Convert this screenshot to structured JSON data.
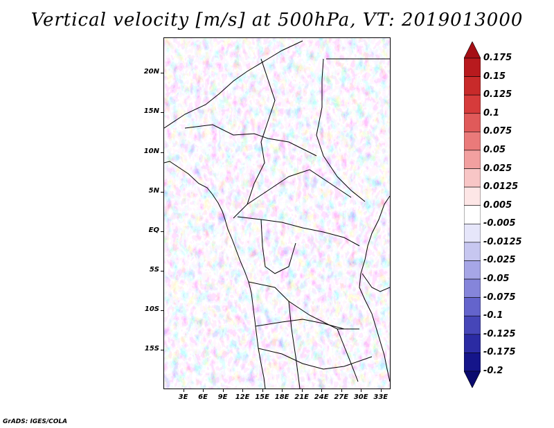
{
  "title": "Vertical velocity [m/s] at 500hPa, VT: 2019013000",
  "footer": "GrADS: IGES/COLA",
  "map": {
    "lat_labels": [
      "20N",
      "15N",
      "10N",
      "5N",
      "EQ",
      "5S",
      "10S",
      "15S"
    ],
    "lon_labels": [
      "3E",
      "6E",
      "9E",
      "12E",
      "15E",
      "18E",
      "21E",
      "24E",
      "27E",
      "30E",
      "33E"
    ],
    "lat_values": [
      20,
      15,
      10,
      5,
      0,
      -5,
      -10,
      -15
    ],
    "lon_values": [
      3,
      6,
      9,
      12,
      15,
      18,
      21,
      24,
      27,
      30,
      33
    ],
    "lon_range": [
      0,
      34.5
    ],
    "lat_range": [
      -20,
      24.5
    ],
    "field": "vertical velocity at 500hPa",
    "boundaries": "country borders and coastlines"
  },
  "colorbar": {
    "labels": [
      "0.175",
      "0.15",
      "0.125",
      "0.1",
      "0.075",
      "0.05",
      "0.025",
      "0.0125",
      "0.005",
      "-0.005",
      "-0.0125",
      "-0.025",
      "-0.05",
      "-0.075",
      "-0.1",
      "-0.125",
      "-0.175",
      "-0.2"
    ],
    "colors": [
      "#a50f15",
      "#b81a1e",
      "#c82a2a",
      "#d63b3b",
      "#e05a5a",
      "#ea7a7a",
      "#f2a0a0",
      "#f8c6c6",
      "#fde6e6",
      "#ffffff",
      "#e6e6fa",
      "#c7c7f0",
      "#a6a6e6",
      "#8585da",
      "#6464cc",
      "#4646b8",
      "#2b2ba3",
      "#15158a",
      "#0a0a6e"
    ]
  }
}
